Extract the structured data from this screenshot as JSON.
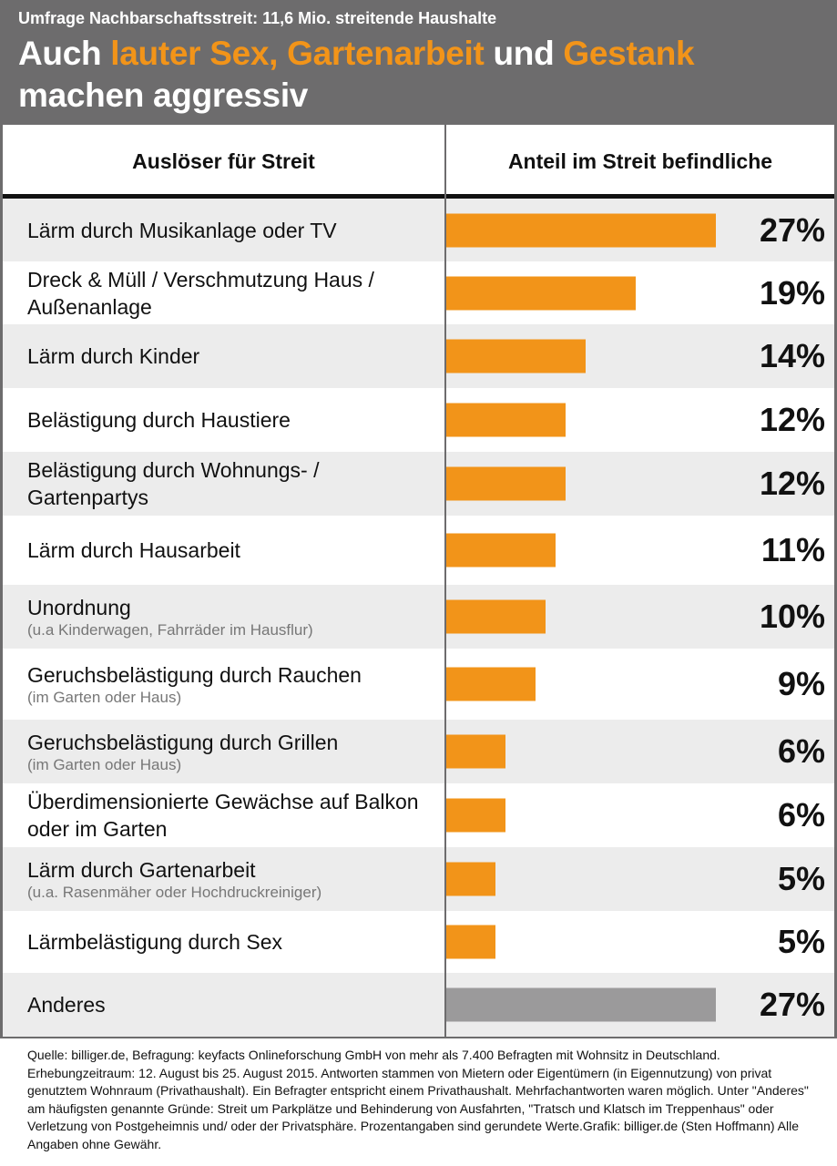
{
  "header": {
    "kicker": "Umfrage Nachbarschaftsstreit: 11,6 Mio. streitende Haushalte",
    "title_parts": [
      "Auch ",
      "lauter Sex, Gartenarbeit",
      " und ",
      "Gestank",
      "machen aggressiv"
    ]
  },
  "colors": {
    "bar": "#f29419",
    "bar_other": "#9b9a9b",
    "header_bg": "#6d6c6d",
    "highlight": "#f29419"
  },
  "chart_data": {
    "type": "bar",
    "orientation": "horizontal",
    "column_headers": [
      "Auslöser für Streit",
      "Anteil im Streit befindliche"
    ],
    "categories": [
      {
        "label": "Lärm durch Musikanlage oder TV",
        "sub": "",
        "value": 27,
        "display": "27%"
      },
      {
        "label": "Dreck & Müll / Verschmutzung Haus / Außenanlage",
        "sub": "",
        "value": 19,
        "display": "19%"
      },
      {
        "label": "Lärm durch Kinder",
        "sub": "",
        "value": 14,
        "display": "14%"
      },
      {
        "label": "Belästigung durch Haustiere",
        "sub": "",
        "value": 12,
        "display": "12%"
      },
      {
        "label": "Belästigung durch Wohnungs- / Gartenpartys",
        "sub": "",
        "value": 12,
        "display": "12%"
      },
      {
        "label": "Lärm durch Hausarbeit",
        "sub": "",
        "value": 11,
        "display": "11%"
      },
      {
        "label": "Unordnung",
        "sub": "(u.a Kinderwagen, Fahrräder im Hausflur)",
        "value": 10,
        "display": "10%"
      },
      {
        "label": "Geruchsbelästigung durch Rauchen",
        "sub": "(im Garten oder Haus)",
        "value": 9,
        "display": "9%"
      },
      {
        "label": "Geruchsbelästigung durch Grillen",
        "sub": "(im Garten oder Haus)",
        "value": 6,
        "display": "6%"
      },
      {
        "label": "Überdimensionierte Gewächse auf Balkon oder im Garten",
        "sub": "",
        "value": 6,
        "display": "6%"
      },
      {
        "label": "Lärm durch Gartenarbeit",
        "sub": "(u.a. Rasenmäher oder Hochdruckreiniger)",
        "value": 5,
        "display": "5%"
      },
      {
        "label": "Lärmbelästigung durch Sex",
        "sub": "",
        "value": 5,
        "display": "5%"
      },
      {
        "label": "Anderes",
        "sub": "",
        "value": 27,
        "display": "27%",
        "other": true
      }
    ],
    "unit": "%"
  },
  "footer": "Quelle: billiger.de, Befragung: keyfacts Onlineforschung GmbH von mehr als 7.400 Befragten mit Wohnsitz in Deutschland. Erhebungzeitraum: 12. August bis 25. August 2015. Antworten stammen von Mietern oder Eigentümern (in Eigennutzung) von privat genutztem Wohnraum (Privathaushalt). Ein Befragter entspricht einem Privathaushalt. Mehrfachantworten waren möglich. Unter \"Anderes\" am häufigsten genannte Gründe: Streit um Parkplätze und Behinderung von Ausfahrten, \"Tratsch und Klatsch im Treppenhaus\" oder Verletzung von Postgeheimnis und/ oder der Privatsphäre. Prozentangaben sind gerundete Werte.Grafik: billiger.de (Sten Hoffmann) Alle Angaben ohne Gewähr."
}
